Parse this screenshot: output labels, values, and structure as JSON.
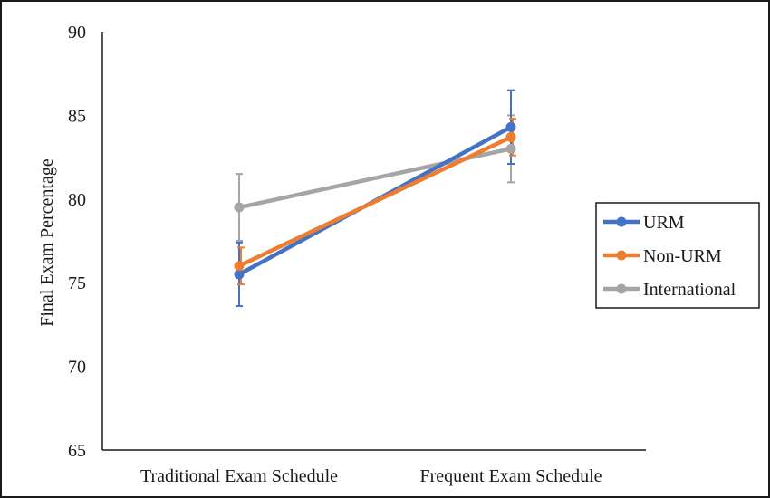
{
  "chart_data": {
    "type": "line",
    "title": "",
    "xlabel": "",
    "ylabel": "Final Exam Percentage",
    "categories": [
      "Traditional Exam Schedule",
      "Frequent Exam Schedule"
    ],
    "ylim": [
      65,
      90
    ],
    "yticks": [
      65,
      70,
      75,
      80,
      85,
      90
    ],
    "grid": false,
    "legend_position": "right",
    "series": [
      {
        "name": "URM",
        "color": "#4472C4",
        "values": [
          75.5,
          84.3
        ],
        "error": [
          1.9,
          2.2
        ]
      },
      {
        "name": "Non-URM",
        "color": "#ED7D31",
        "values": [
          76.0,
          83.7
        ],
        "error": [
          1.1,
          1.1
        ]
      },
      {
        "name": "International",
        "color": "#A5A5A5",
        "values": [
          79.5,
          83.0
        ],
        "error": [
          2.0,
          2.0
        ]
      }
    ]
  }
}
